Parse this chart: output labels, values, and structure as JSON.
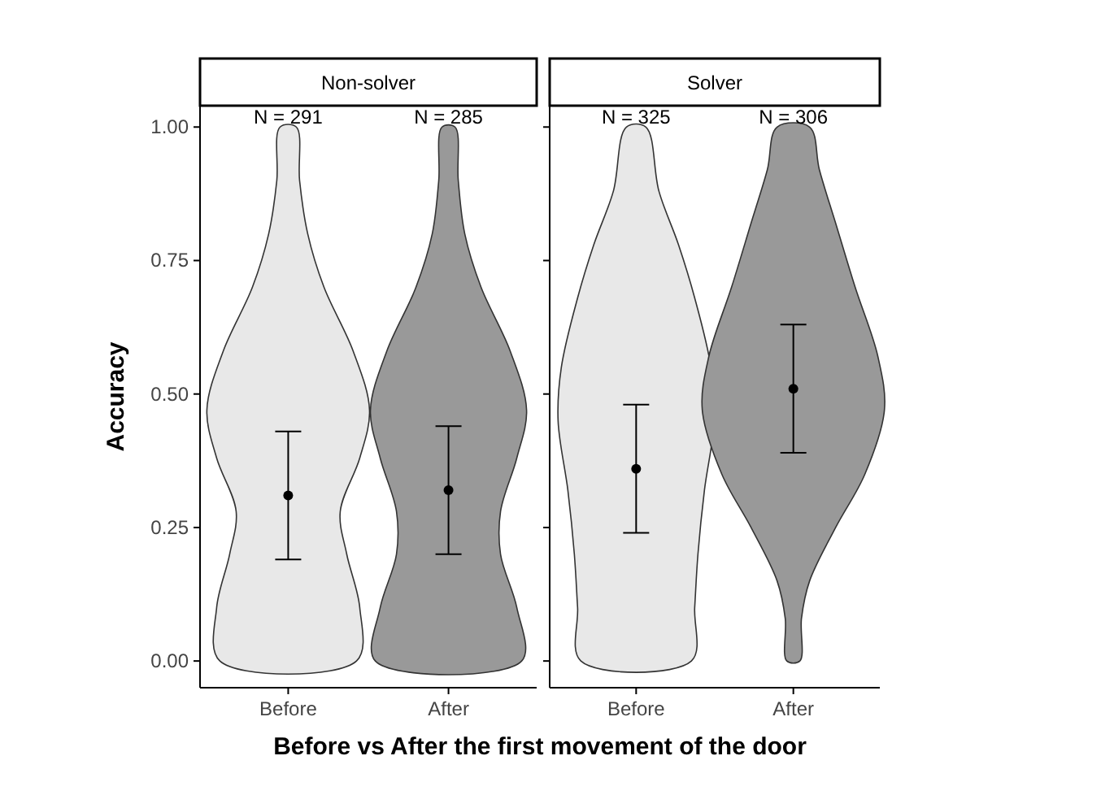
{
  "chart_data": [
    {
      "type": "scatter",
      "title": "Non-solver",
      "ylabel": "Accuracy",
      "xlabel": "Before vs After the first movement of the door",
      "categories": [
        "Before",
        "After"
      ],
      "ylim": [
        -0.05,
        1.04
      ],
      "yticks": [
        {
          "value": 0,
          "label": "0.00"
        },
        {
          "value": 0.25,
          "label": "0.25"
        },
        {
          "value": 0.5,
          "label": "0.50"
        },
        {
          "value": 0.75,
          "label": "0.75"
        },
        {
          "value": 1,
          "label": "1.00"
        }
      ],
      "grid": false,
      "marker": "circle",
      "series": [
        {
          "color": "#000000",
          "values": [
            0.31,
            0.32
          ],
          "errors": [
            [
              0.19,
              0.43
            ],
            [
              0.2,
              0.44
            ]
          ]
        }
      ],
      "annotations": [
        "N = 291",
        "N = 285"
      ]
    },
    {
      "type": "scatter",
      "title": "Solver",
      "categories": [
        "Before",
        "After"
      ],
      "ylim": [
        -0.05,
        1.04
      ],
      "yticks": [
        {
          "value": 0,
          "label": null
        },
        {
          "value": 0.25,
          "label": null
        },
        {
          "value": 0.5,
          "label": null
        },
        {
          "value": 0.75,
          "label": null
        },
        {
          "value": 1,
          "label": null
        }
      ],
      "tick_labels": "x",
      "grid": false,
      "marker": "circle",
      "series": [
        {
          "color": "#000000",
          "values": [
            0.36,
            0.51
          ],
          "errors": [
            [
              0.24,
              0.48
            ],
            [
              0.39,
              0.63
            ]
          ]
        }
      ],
      "annotations": [
        "N = 325",
        "N = 306"
      ]
    }
  ]
}
